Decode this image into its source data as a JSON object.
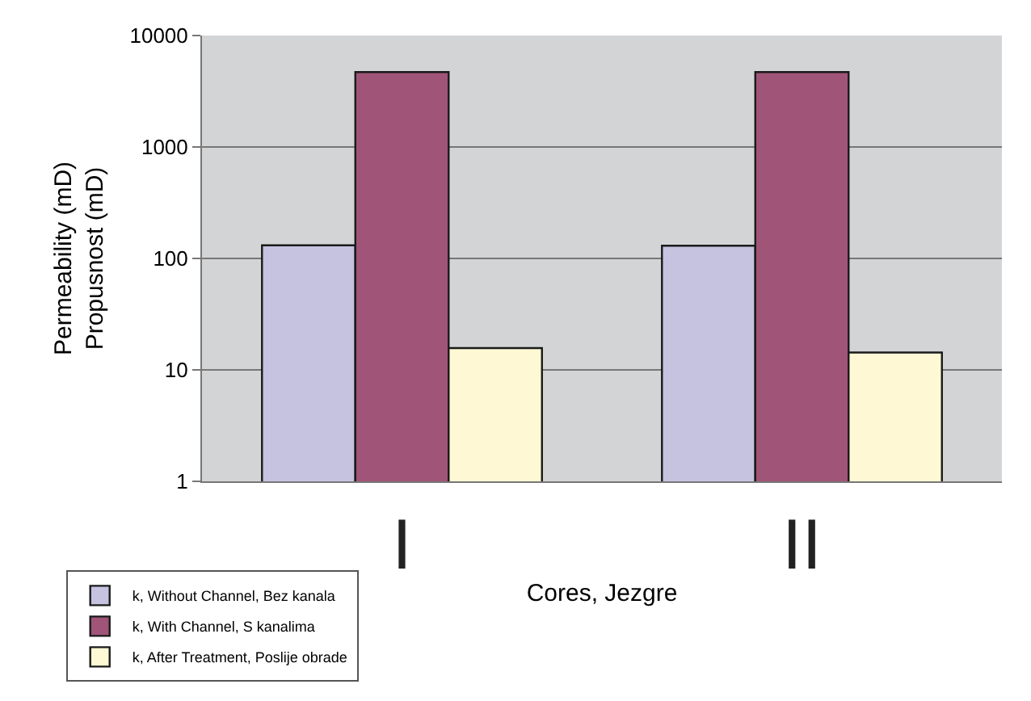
{
  "chart_data": {
    "type": "bar",
    "ylabel": "Permeability (mD)\nPropusnost (mD)",
    "xlabel": "Cores, Jezgre",
    "categories": [
      "I",
      "II"
    ],
    "series": [
      {
        "name": "k, Without Channel, Bez kanala",
        "color": "#c6c3e1",
        "values": [
          131,
          130
        ]
      },
      {
        "name": "k, With Channel, S kanalima",
        "color": "#a05578",
        "values": [
          4700,
          4700
        ]
      },
      {
        "name": "k, After Treatment, Poslije obrade",
        "color": "#fef9d4",
        "values": [
          15.7,
          14.3
        ]
      }
    ],
    "log": true,
    "ylim": [
      1,
      10000
    ],
    "yticks": [
      1,
      10,
      100,
      1000,
      10000
    ],
    "grid": "y",
    "legend": "bottom left"
  }
}
